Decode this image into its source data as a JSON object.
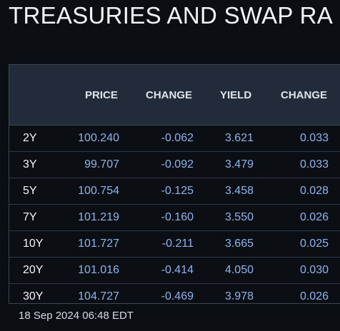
{
  "page": {
    "title": "TREASURIES AND SWAP RA",
    "timestamp": "18 Sep 2024 06:48 EDT"
  },
  "table": {
    "headers": [
      "PRICE",
      "CHANGE",
      "YIELD",
      "CHANGE"
    ],
    "rows": [
      {
        "tenor": "2Y",
        "price": "100.240",
        "change": "-0.062",
        "yield": "3.621",
        "yield_change": "0.033"
      },
      {
        "tenor": "3Y",
        "price": "99.707",
        "change": "-0.092",
        "yield": "3.479",
        "yield_change": "0.033"
      },
      {
        "tenor": "5Y",
        "price": "100.754",
        "change": "-0.125",
        "yield": "3.458",
        "yield_change": "0.028"
      },
      {
        "tenor": "7Y",
        "price": "101.219",
        "change": "-0.160",
        "yield": "3.550",
        "yield_change": "0.026"
      },
      {
        "tenor": "10Y",
        "price": "101.727",
        "change": "-0.211",
        "yield": "3.665",
        "yield_change": "0.025"
      },
      {
        "tenor": "20Y",
        "price": "101.016",
        "change": "-0.414",
        "yield": "4.050",
        "yield_change": "0.030"
      },
      {
        "tenor": "30Y",
        "price": "104.727",
        "change": "-0.469",
        "yield": "3.978",
        "yield_change": "0.026"
      }
    ]
  },
  "colors": {
    "background": "#0b0e13",
    "header_background": "#212b3a",
    "value_text": "#8eb4f0",
    "label_text": "#f2f4f7"
  }
}
